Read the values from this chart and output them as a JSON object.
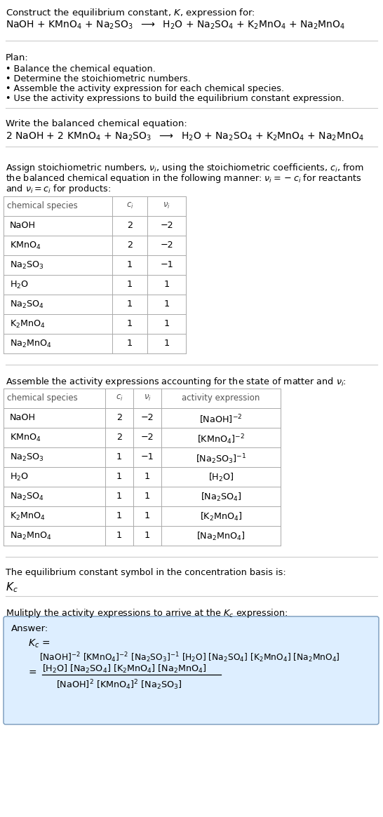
{
  "bg_color": "#ffffff",
  "text_color": "#000000",
  "gray_text": "#555555",
  "answer_bg": "#ddeeff",
  "answer_border": "#7799bb",
  "title_line1": "Construct the equilibrium constant, $K$, expression for:",
  "title_line2": "NaOH + KMnO$_4$ + Na$_2$SO$_3$  $\\longrightarrow$  H$_2$O + Na$_2$SO$_4$ + K$_2$MnO$_4$ + Na$_2$MnO$_4$",
  "plan_header": "Plan:",
  "plan_items": [
    "• Balance the chemical equation.",
    "• Determine the stoichiometric numbers.",
    "• Assemble the activity expression for each chemical species.",
    "• Use the activity expressions to build the equilibrium constant expression."
  ],
  "balanced_header": "Write the balanced chemical equation:",
  "balanced_eq": "2 NaOH + 2 KMnO$_4$ + Na$_2$SO$_3$  $\\longrightarrow$  H$_2$O + Na$_2$SO$_4$ + K$_2$MnO$_4$ + Na$_2$MnO$_4$",
  "stoich_intro_lines": [
    "Assign stoichiometric numbers, $\\nu_i$, using the stoichiometric coefficients, $c_i$, from",
    "the balanced chemical equation in the following manner: $\\nu_i = -c_i$ for reactants",
    "and $\\nu_i = c_i$ for products:"
  ],
  "table1_headers": [
    "chemical species",
    "$c_i$",
    "$\\nu_i$"
  ],
  "table1_rows": [
    [
      "NaOH",
      "2",
      "−2"
    ],
    [
      "KMnO$_4$",
      "2",
      "−2"
    ],
    [
      "Na$_2$SO$_3$",
      "1",
      "−1"
    ],
    [
      "H$_2$O",
      "1",
      "1"
    ],
    [
      "Na$_2$SO$_4$",
      "1",
      "1"
    ],
    [
      "K$_2$MnO$_4$",
      "1",
      "1"
    ],
    [
      "Na$_2$MnO$_4$",
      "1",
      "1"
    ]
  ],
  "activity_intro": "Assemble the activity expressions accounting for the state of matter and $\\nu_i$:",
  "table2_headers": [
    "chemical species",
    "$c_i$",
    "$\\nu_i$",
    "activity expression"
  ],
  "table2_rows": [
    [
      "NaOH",
      "2",
      "−2",
      "[NaOH]$^{-2}$"
    ],
    [
      "KMnO$_4$",
      "2",
      "−2",
      "[KMnO$_4$]$^{-2}$"
    ],
    [
      "Na$_2$SO$_3$",
      "1",
      "−1",
      "[Na$_2$SO$_3$]$^{-1}$"
    ],
    [
      "H$_2$O",
      "1",
      "1",
      "[H$_2$O]"
    ],
    [
      "Na$_2$SO$_4$",
      "1",
      "1",
      "[Na$_2$SO$_4$]"
    ],
    [
      "K$_2$MnO$_4$",
      "1",
      "1",
      "[K$_2$MnO$_4$]"
    ],
    [
      "Na$_2$MnO$_4$",
      "1",
      "1",
      "[Na$_2$MnO$_4$]"
    ]
  ],
  "kc_intro": "The equilibrium constant symbol in the concentration basis is:",
  "kc_symbol": "$K_c$",
  "multiply_intro": "Mulitply the activity expressions to arrive at the $K_c$ expression:",
  "answer_label": "Answer:",
  "kc_line1": "$K_c$ =",
  "kc_line2": "[NaOH]$^{-2}$ [KMnO$_4$]$^{-2}$ [Na$_2$SO$_3$]$^{-1}$ [H$_2$O] [Na$_2$SO$_4$] [K$_2$MnO$_4$] [Na$_2$MnO$_4$]",
  "kc_numerator": "[H$_2$O] [Na$_2$SO$_4$] [K$_2$MnO$_4$] [Na$_2$MnO$_4$]",
  "kc_denominator": "[NaOH]$^2$ [KMnO$_4$]$^2$ [Na$_2$SO$_3$]"
}
